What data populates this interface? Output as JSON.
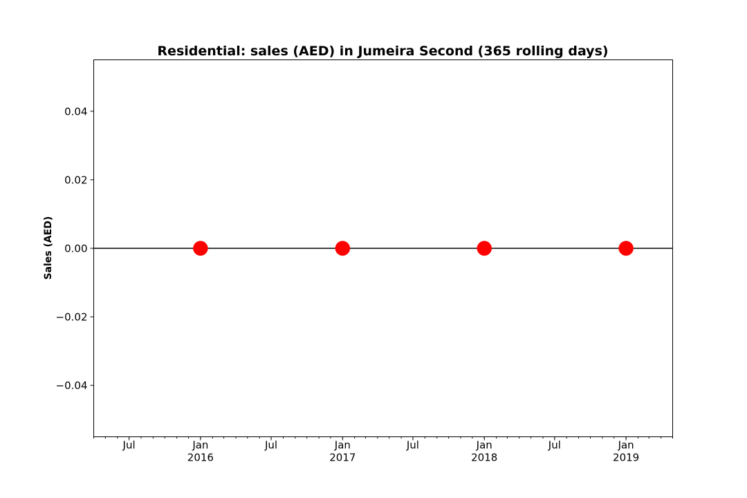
{
  "chart_data": {
    "type": "line",
    "title": "Residential: sales (AED) in Jumeira Second (365 rolling days)",
    "xlabel": "",
    "ylabel": "Sales (AED)",
    "xlim": [
      "2015-04-01",
      "2019-05-01"
    ],
    "ylim": [
      -0.055,
      0.055
    ],
    "yticks": [
      -0.04,
      -0.02,
      0.0,
      0.02,
      0.04
    ],
    "ytick_labels": [
      "−0.04",
      "−0.02",
      "0.00",
      "0.02",
      "0.04"
    ],
    "xticks": [
      {
        "date": "2015-07-01",
        "label": "Jul"
      },
      {
        "date": "2016-01-01",
        "label": "Jan\n2016"
      },
      {
        "date": "2016-07-01",
        "label": "Jul"
      },
      {
        "date": "2017-01-01",
        "label": "Jan\n2017"
      },
      {
        "date": "2017-07-01",
        "label": "Jul"
      },
      {
        "date": "2018-01-01",
        "label": "Jan\n2018"
      },
      {
        "date": "2018-07-01",
        "label": "Jul"
      },
      {
        "date": "2019-01-01",
        "label": "Jan\n2019"
      }
    ],
    "grid": false,
    "series": [
      {
        "color": "#000000",
        "x": [
          "2015-04-01",
          "2019-05-01"
        ],
        "y": [
          0,
          0
        ]
      },
      {
        "color": "#ff0000",
        "marker": "circle",
        "x": [
          "2016-01-01",
          "2017-01-01",
          "2018-01-01",
          "2019-01-01"
        ],
        "y": [
          0,
          0,
          0,
          0
        ]
      }
    ]
  }
}
